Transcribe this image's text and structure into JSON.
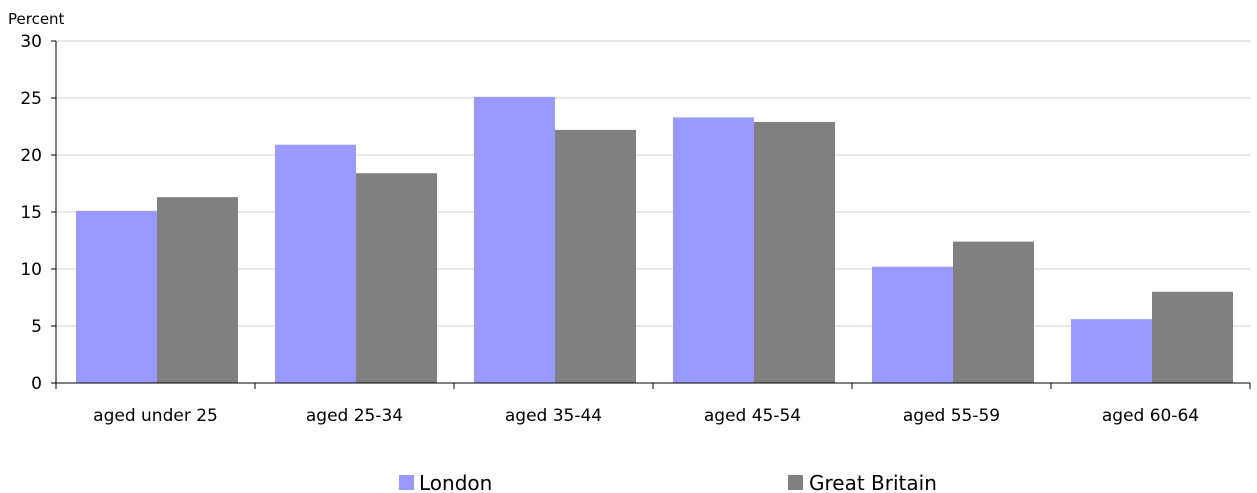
{
  "chart_data": {
    "type": "bar",
    "title": "",
    "ylabel": "Percent",
    "xlabel": "",
    "ylim": [
      0,
      30
    ],
    "yticks": [
      0,
      5,
      10,
      15,
      20,
      25,
      30
    ],
    "grid": true,
    "legend_position": "bottom",
    "categories": [
      "aged under 25",
      "aged 25-34",
      "aged 35-44",
      "aged 45-54",
      "aged 55-59",
      "aged 60-64"
    ],
    "series": [
      {
        "name": "London",
        "color": "#9999ff",
        "values": [
          15.1,
          20.9,
          25.1,
          23.3,
          10.2,
          5.6
        ]
      },
      {
        "name": "Great Britain",
        "color": "#808080",
        "values": [
          16.3,
          18.4,
          22.2,
          22.9,
          12.4,
          8.0
        ]
      }
    ]
  }
}
